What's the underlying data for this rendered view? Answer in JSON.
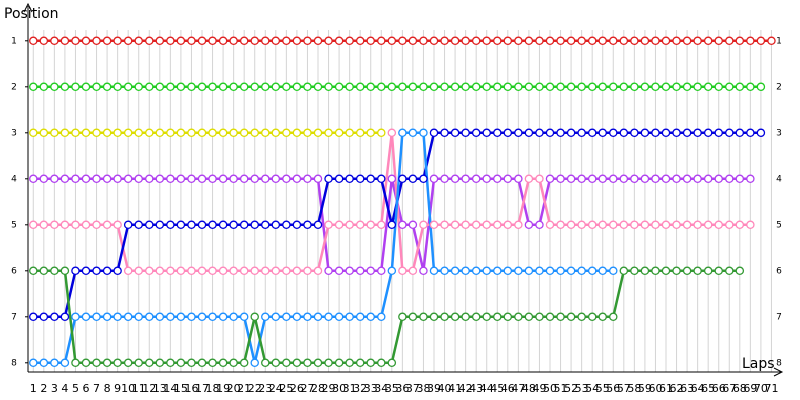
{
  "chart_data": {
    "type": "line",
    "y_label": "Position",
    "x_label": "Laps",
    "x": [
      1,
      2,
      3,
      4,
      5,
      6,
      7,
      8,
      9,
      10,
      11,
      12,
      13,
      14,
      15,
      16,
      17,
      18,
      19,
      20,
      21,
      22,
      23,
      24,
      25,
      26,
      27,
      28,
      29,
      30,
      31,
      32,
      33,
      34,
      35,
      36,
      37,
      38,
      39,
      40,
      41,
      42,
      43,
      44,
      45,
      46,
      47,
      48,
      49,
      50,
      51,
      52,
      53,
      54,
      55,
      56,
      57,
      58,
      59,
      60,
      61,
      62,
      63,
      64,
      65,
      66,
      67,
      68,
      69,
      70,
      71
    ],
    "xlim": [
      0.5,
      72
    ],
    "ylim": [
      8.2,
      0.2
    ],
    "yticks": [
      1,
      2,
      3,
      4,
      5,
      6,
      7,
      8
    ],
    "grid": true,
    "series": [
      {
        "color": "#e02020",
        "values": [
          1,
          1,
          1,
          1,
          1,
          1,
          1,
          1,
          1,
          1,
          1,
          1,
          1,
          1,
          1,
          1,
          1,
          1,
          1,
          1,
          1,
          1,
          1,
          1,
          1,
          1,
          1,
          1,
          1,
          1,
          1,
          1,
          1,
          1,
          1,
          1,
          1,
          1,
          1,
          1,
          1,
          1,
          1,
          1,
          1,
          1,
          1,
          1,
          1,
          1,
          1,
          1,
          1,
          1,
          1,
          1,
          1,
          1,
          1,
          1,
          1,
          1,
          1,
          1,
          1,
          1,
          1,
          1,
          1,
          1,
          1
        ]
      },
      {
        "color": "#22cc22",
        "values": [
          2,
          2,
          2,
          2,
          2,
          2,
          2,
          2,
          2,
          2,
          2,
          2,
          2,
          2,
          2,
          2,
          2,
          2,
          2,
          2,
          2,
          2,
          2,
          2,
          2,
          2,
          2,
          2,
          2,
          2,
          2,
          2,
          2,
          2,
          2,
          2,
          2,
          2,
          2,
          2,
          2,
          2,
          2,
          2,
          2,
          2,
          2,
          2,
          2,
          2,
          2,
          2,
          2,
          2,
          2,
          2,
          2,
          2,
          2,
          2,
          2,
          2,
          2,
          2,
          2,
          2,
          2,
          2,
          2,
          2,
          null
        ]
      },
      {
        "color": "#dddd00",
        "values": [
          3,
          3,
          3,
          3,
          3,
          3,
          3,
          3,
          3,
          3,
          3,
          3,
          3,
          3,
          3,
          3,
          3,
          3,
          3,
          3,
          3,
          3,
          3,
          3,
          3,
          3,
          3,
          3,
          3,
          3,
          3,
          3,
          3,
          3,
          null,
          null,
          null,
          null,
          null,
          null,
          null,
          null,
          null,
          null,
          null,
          null,
          null,
          null,
          null,
          null,
          null,
          null,
          null,
          null,
          null,
          null,
          null,
          null,
          null,
          null,
          null,
          null,
          null,
          null,
          null,
          null,
          null,
          null,
          null,
          null,
          null
        ]
      },
      {
        "color": "#b040f0",
        "values": [
          4,
          4,
          4,
          4,
          4,
          4,
          4,
          4,
          4,
          4,
          4,
          4,
          4,
          4,
          4,
          4,
          4,
          4,
          4,
          4,
          4,
          4,
          4,
          4,
          4,
          4,
          4,
          4,
          6,
          6,
          6,
          6,
          6,
          6,
          4,
          5,
          5,
          6,
          4,
          4,
          4,
          4,
          4,
          4,
          4,
          4,
          4,
          5,
          5,
          4,
          4,
          4,
          4,
          4,
          4,
          4,
          4,
          4,
          4,
          4,
          4,
          4,
          4,
          4,
          4,
          4,
          4,
          4,
          4,
          null,
          null
        ]
      },
      {
        "color": "#ff88bb",
        "values": [
          5,
          5,
          5,
          5,
          5,
          5,
          5,
          5,
          5,
          6,
          6,
          6,
          6,
          6,
          6,
          6,
          6,
          6,
          6,
          6,
          6,
          6,
          6,
          6,
          6,
          6,
          6,
          6,
          5,
          5,
          5,
          5,
          5,
          5,
          3,
          6,
          6,
          5,
          5,
          5,
          5,
          5,
          5,
          5,
          5,
          5,
          5,
          4,
          4,
          5,
          5,
          5,
          5,
          5,
          5,
          5,
          5,
          5,
          5,
          5,
          5,
          5,
          5,
          5,
          5,
          5,
          5,
          5,
          5,
          null,
          null
        ]
      },
      {
        "color": "#0000dd",
        "values": [
          7,
          7,
          7,
          7,
          6,
          6,
          6,
          6,
          6,
          5,
          5,
          5,
          5,
          5,
          5,
          5,
          5,
          5,
          5,
          5,
          5,
          5,
          5,
          5,
          5,
          5,
          5,
          5,
          4,
          4,
          4,
          4,
          4,
          4,
          5,
          4,
          4,
          4,
          3,
          3,
          3,
          3,
          3,
          3,
          3,
          3,
          3,
          3,
          3,
          3,
          3,
          3,
          3,
          3,
          3,
          3,
          3,
          3,
          3,
          3,
          3,
          3,
          3,
          3,
          3,
          3,
          3,
          3,
          3,
          3,
          null
        ]
      },
      {
        "color": "#1e90ff",
        "values": [
          8,
          8,
          8,
          8,
          7,
          7,
          7,
          7,
          7,
          7,
          7,
          7,
          7,
          7,
          7,
          7,
          7,
          7,
          7,
          7,
          7,
          8,
          7,
          7,
          7,
          7,
          7,
          7,
          7,
          7,
          7,
          7,
          7,
          7,
          6,
          3,
          3,
          3,
          6,
          6,
          6,
          6,
          6,
          6,
          6,
          6,
          6,
          6,
          6,
          6,
          6,
          6,
          6,
          6,
          6,
          6,
          null,
          null,
          null,
          null,
          null,
          null,
          null,
          null,
          null,
          null,
          null,
          null,
          null,
          null,
          null
        ]
      },
      {
        "color": "#339933",
        "values": [
          6,
          6,
          6,
          6,
          8,
          8,
          8,
          8,
          8,
          8,
          8,
          8,
          8,
          8,
          8,
          8,
          8,
          8,
          8,
          8,
          8,
          7,
          8,
          8,
          8,
          8,
          8,
          8,
          8,
          8,
          8,
          8,
          8,
          8,
          8,
          7,
          7,
          7,
          7,
          7,
          7,
          7,
          7,
          7,
          7,
          7,
          7,
          7,
          7,
          7,
          7,
          7,
          7,
          7,
          7,
          7,
          6,
          6,
          6,
          6,
          6,
          6,
          6,
          6,
          6,
          6,
          6,
          6,
          null,
          null,
          null
        ]
      }
    ]
  }
}
